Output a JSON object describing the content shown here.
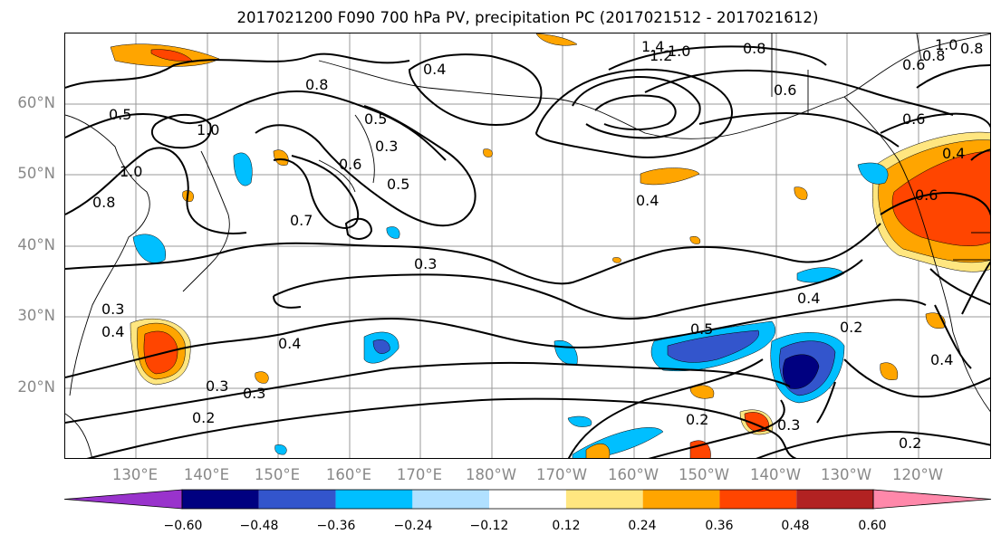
{
  "title": "2017021200 F090 700 hPa PV, precipitation PC (2017021512 - 2017021612)",
  "lat_labels": [
    "60°N",
    "50°N",
    "40°N",
    "30°N",
    "20°N"
  ],
  "lon_labels": [
    "130°E",
    "140°E",
    "150°E",
    "160°E",
    "170°E",
    "180°W",
    "170°W",
    "160°W",
    "150°W",
    "140°W",
    "130°W",
    "120°W"
  ],
  "contour_labels": [
    "1.4",
    "1.2",
    "1.0",
    "0.8",
    "0.8",
    "0.6",
    "0.8",
    "1.0",
    "0.4",
    "0.8",
    "0.6",
    "0.5",
    "1.0",
    "0.8",
    "1.0",
    "0.6",
    "0.5",
    "0.3",
    "0.5",
    "0.7",
    "0.4",
    "0.6",
    "0.4",
    "0.3",
    "0.3",
    "0.4",
    "0.5",
    "0.4",
    "0.4",
    "0.3",
    "0.3",
    "0.2",
    "0.2",
    "0.3",
    "0.2",
    "0.2",
    "0.4",
    "0.6"
  ],
  "colorbar": {
    "ticks": [
      "−0.60",
      "−0.48",
      "−0.36",
      "−0.24",
      "−0.12",
      "0.12",
      "0.24",
      "0.36",
      "0.48",
      "0.60"
    ],
    "colors": [
      "#9933cc",
      "#000080",
      "#3355cc",
      "#00bfff",
      "#b0e0ff",
      "#ffffff",
      "#ffe680",
      "#ffa500",
      "#ff4500",
      "#b22222",
      "#ff88aa"
    ]
  }
}
